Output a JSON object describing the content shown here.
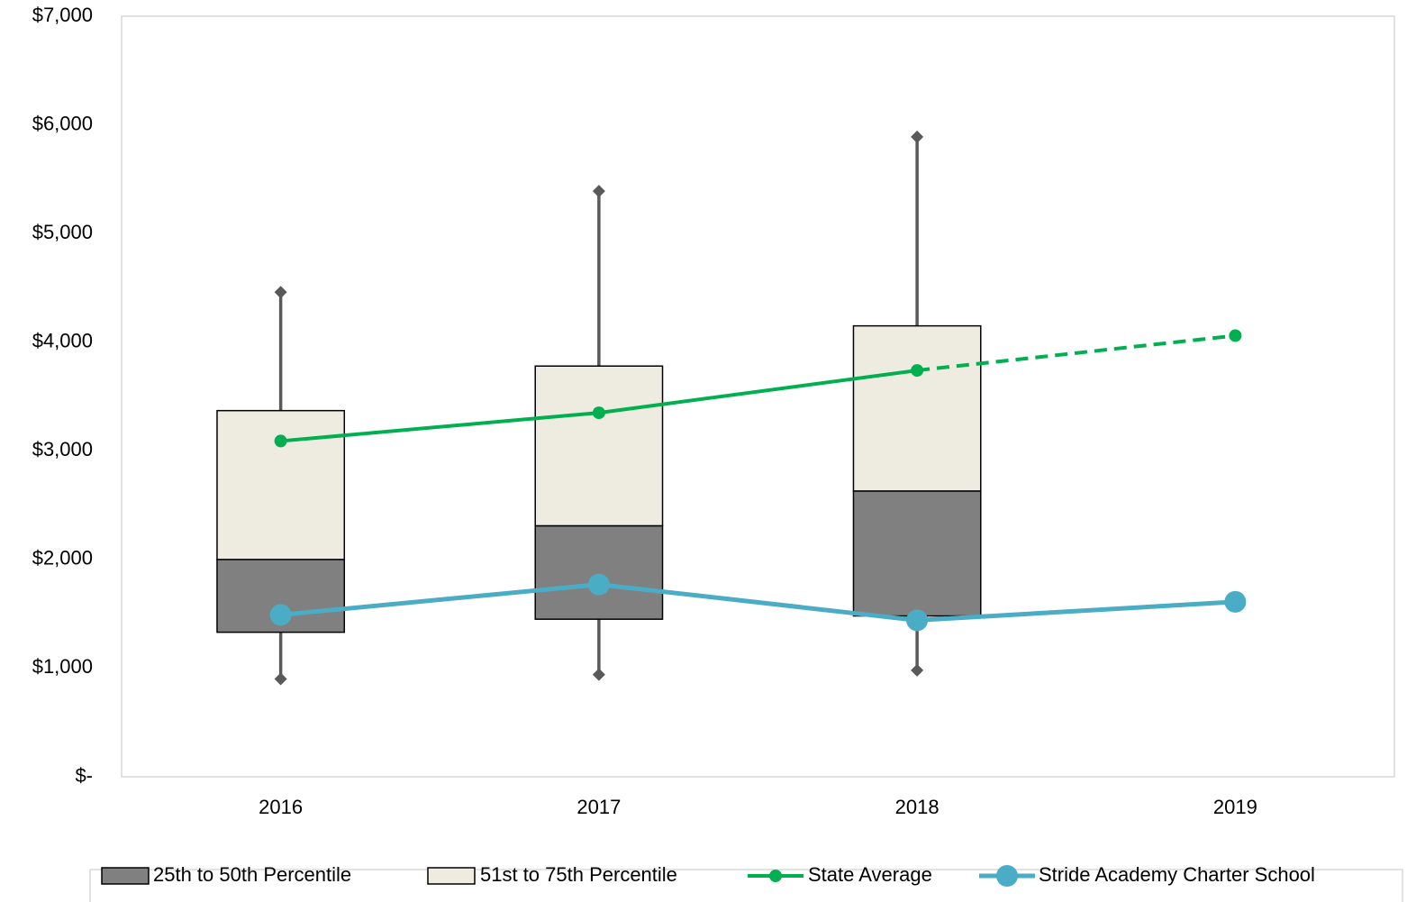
{
  "chart_data": {
    "type": "box",
    "categories": [
      "2016",
      "2017",
      "2018",
      "2019"
    ],
    "ylim": [
      0,
      7000
    ],
    "yticks": [
      {
        "value": 0,
        "label": "$-"
      },
      {
        "value": 1000,
        "label": "$1,000"
      },
      {
        "value": 2000,
        "label": "$2,000"
      },
      {
        "value": 3000,
        "label": "$3,000"
      },
      {
        "value": 4000,
        "label": "$4,000"
      },
      {
        "value": 5000,
        "label": "$5,000"
      },
      {
        "value": 6000,
        "label": "$6,000"
      },
      {
        "value": 7000,
        "label": "$7,000"
      }
    ],
    "grid": false,
    "legend": "bottom",
    "boxes": {
      "whisker_low": [
        900,
        940,
        980
      ],
      "q1": [
        1330,
        1450,
        1480
      ],
      "median": [
        2000,
        2310,
        2630
      ],
      "q3": [
        3370,
        3780,
        4150
      ],
      "whisker_high": [
        4460,
        5390,
        5890
      ],
      "whisker_color": "#595959"
    },
    "box_series": [
      {
        "name": "25th to 50th Percentile",
        "color": "#808080"
      },
      {
        "name": "51st to 75th Percentile",
        "color": "#eeebe0"
      }
    ],
    "series": [
      {
        "name": "State Average",
        "color": "#00b050",
        "values": [
          3090,
          3350,
          3740,
          4060
        ],
        "segment_styles": [
          "solid",
          "solid",
          "dashed"
        ],
        "marker_size": 7
      },
      {
        "name": "Stride Academy Charter School",
        "color": "#4bacc6",
        "values": [
          1490,
          1770,
          1440,
          1610
        ],
        "segment_styles": [
          "solid",
          "solid",
          "solid"
        ],
        "marker_size": 12
      }
    ]
  }
}
